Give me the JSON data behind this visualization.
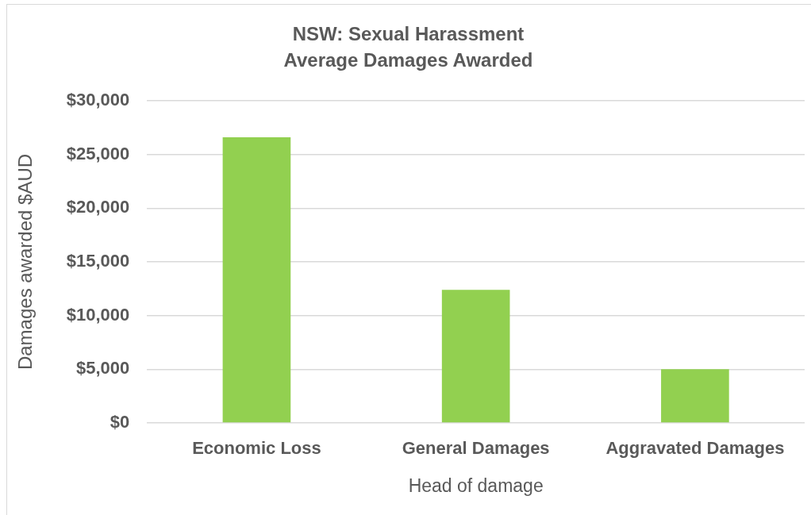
{
  "chart_data": {
    "type": "bar",
    "title": "NSW: Sexual Harassment\nAverage Damages Awarded",
    "xlabel": "Head of damage",
    "ylabel": "Damages awarded $AUD",
    "categories": [
      "Economic Loss",
      "General Damages",
      "Aggravated Damages"
    ],
    "values": [
      26600,
      12400,
      5000
    ],
    "color": "#92d050",
    "ylim": [
      0,
      30000
    ],
    "yticks": [
      {
        "value": 0,
        "label": "$0"
      },
      {
        "value": 5000,
        "label": "$5,000"
      },
      {
        "value": 10000,
        "label": "$10,000"
      },
      {
        "value": 15000,
        "label": "$15,000"
      },
      {
        "value": 20000,
        "label": "$20,000"
      },
      {
        "value": 25000,
        "label": "$25,000"
      },
      {
        "value": 30000,
        "label": "$30,000"
      }
    ],
    "grid": "y"
  }
}
